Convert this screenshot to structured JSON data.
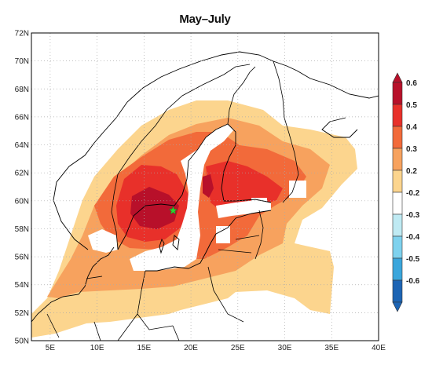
{
  "title": "May–July",
  "chart_data": {
    "type": "heatmap",
    "title": "May–July",
    "xlim": [
      3,
      40
    ],
    "ylim": [
      50,
      72
    ],
    "x_ticks": [
      "5E",
      "10E",
      "15E",
      "20E",
      "25E",
      "30E",
      "35E",
      "40E"
    ],
    "y_ticks": [
      "50N",
      "52N",
      "54N",
      "56N",
      "58N",
      "60N",
      "62N",
      "64N",
      "66N",
      "68N",
      "70N",
      "72N"
    ],
    "grid": true,
    "colorbar": {
      "placement": "right",
      "labels": [
        "0.6",
        "0.5",
        "0.4",
        "0.3",
        "0.2",
        "-0.2",
        "-0.3",
        "-0.4",
        "-0.5",
        "-0.6"
      ],
      "colors": [
        "#b8102a",
        "#e8302a",
        "#f26a3a",
        "#f7a25e",
        "#fcd58e",
        "#ffffff",
        "#bfeaf3",
        "#7ed2ee",
        "#3aa6dc",
        "#1c64b4"
      ]
    },
    "marker": {
      "label": "star",
      "lon": 18.1,
      "lat": 59.3,
      "color": "#2fd02f"
    }
  }
}
